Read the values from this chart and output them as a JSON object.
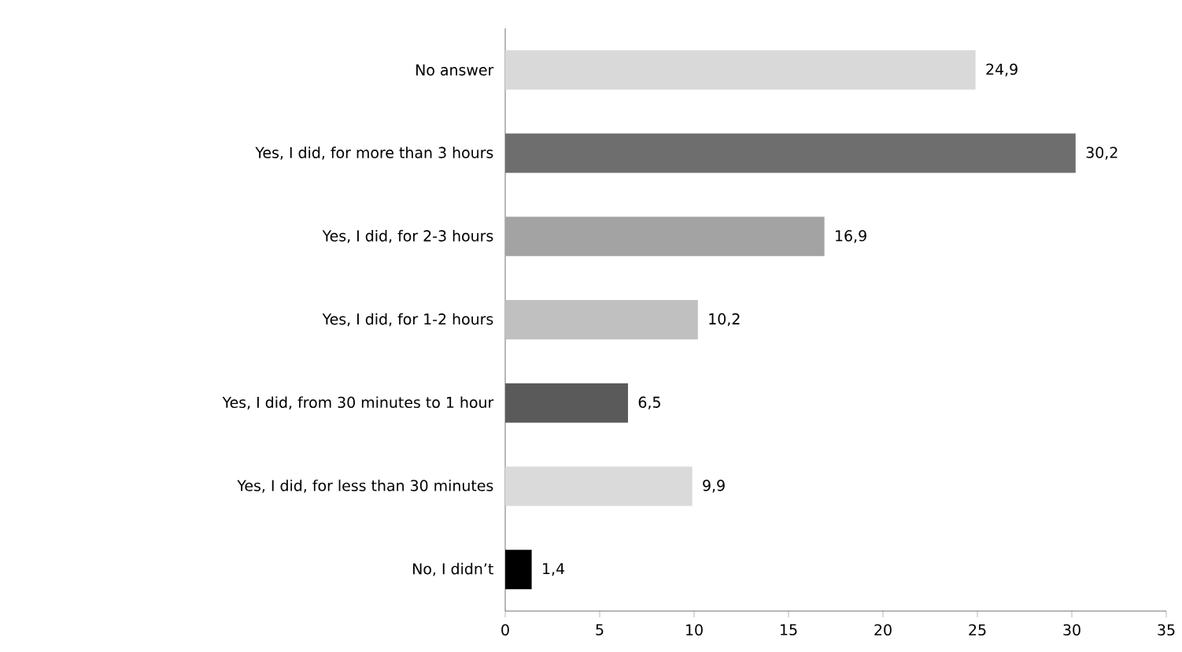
{
  "chart_data": {
    "type": "bar",
    "orientation": "horizontal",
    "categories": [
      "No answer",
      "Yes, I did, for more than 3 hours",
      "Yes, I did, for 2-3 hours",
      "Yes, I did, for 1-2 hours",
      "Yes, I did, from 30 minutes to 1 hour",
      "Yes, I did, for less than 30 minutes",
      "No, I didn’t"
    ],
    "values": [
      24.9,
      30.2,
      16.9,
      10.2,
      6.5,
      9.9,
      1.4
    ],
    "value_labels": [
      "24,9",
      "30,2",
      "16,9",
      "10,2",
      "6,5",
      "9,9",
      "1,4"
    ],
    "colors": [
      "#d9d9d9",
      "#6e6e6e",
      "#a3a3a3",
      "#c0c0c0",
      "#5a5a5a",
      "#dadada",
      "#000000"
    ],
    "xlim": [
      0,
      35
    ],
    "xticks": [
      0,
      5,
      10,
      15,
      20,
      25,
      30,
      35
    ],
    "grid": false
  }
}
